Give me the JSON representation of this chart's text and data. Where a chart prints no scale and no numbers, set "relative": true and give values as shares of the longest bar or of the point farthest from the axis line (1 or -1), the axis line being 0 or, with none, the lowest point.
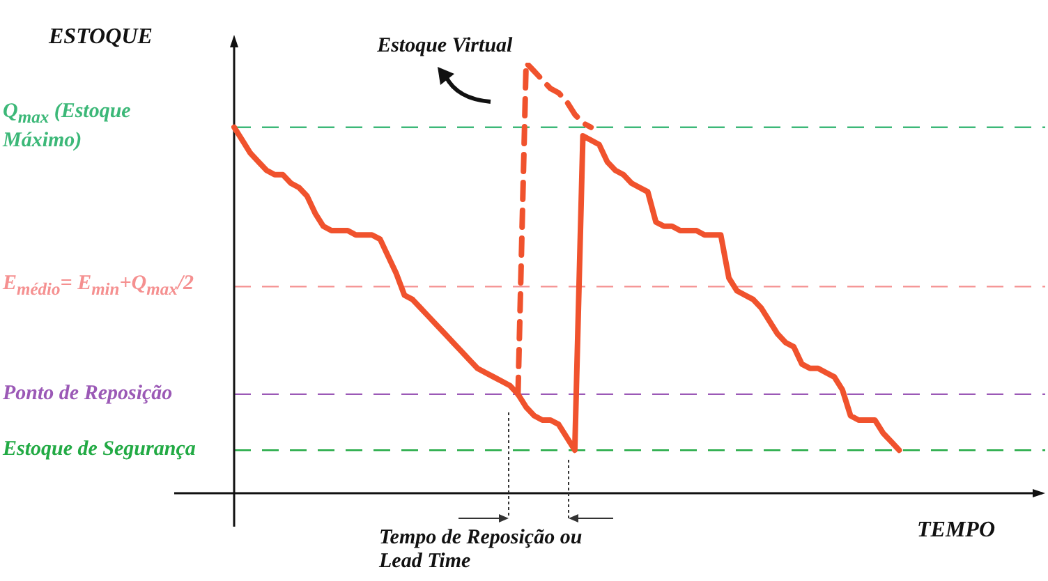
{
  "chart_data": {
    "type": "line",
    "relative": true,
    "ylabel": "ESTOQUE",
    "xlabel": "TEMPO",
    "legend": false,
    "marker": "none",
    "categories": [
      null,
      null,
      null,
      null,
      null,
      null,
      null,
      null,
      null,
      null,
      null,
      null,
      null,
      null,
      null,
      null,
      null,
      null,
      null,
      null,
      null,
      null,
      null,
      null,
      null,
      null,
      null,
      null,
      null,
      null,
      null,
      null,
      null,
      null,
      null,
      null,
      null,
      null,
      null,
      null,
      null,
      null,
      null,
      null,
      null,
      null,
      null,
      null,
      null,
      null,
      null,
      null,
      null,
      null,
      null,
      null,
      null,
      null,
      null,
      null,
      null,
      null,
      null,
      null,
      null,
      null,
      null,
      null,
      null,
      null,
      null,
      null,
      null,
      null,
      null,
      null,
      null,
      null,
      null,
      null,
      null,
      null,
      null,
      null,
      null,
      null,
      null,
      null,
      null,
      null,
      null,
      null,
      null,
      null,
      null,
      null,
      null,
      null,
      null,
      null,
      null
    ],
    "series": [
      {
        "color": "#f0522d",
        "line_style": "solid",
        "values": [
          0.85,
          0.82,
          0.79,
          0.77,
          0.75,
          0.74,
          0.74,
          0.72,
          0.71,
          0.69,
          0.65,
          0.62,
          0.61,
          0.61,
          0.61,
          0.6,
          0.6,
          0.6,
          0.59,
          0.55,
          0.51,
          0.46,
          0.45,
          0.43,
          0.41,
          0.39,
          0.37,
          0.35,
          0.33,
          0.31,
          0.29,
          0.28,
          0.27,
          0.26,
          0.25,
          0.23,
          0.2,
          0.18,
          0.17,
          0.17,
          0.16,
          0.13,
          0.1,
          0.83,
          0.82,
          0.81,
          0.77,
          0.75,
          0.74,
          0.72,
          0.71,
          0.7,
          0.63,
          0.62,
          0.62,
          0.61,
          0.61,
          0.61,
          0.6,
          0.6,
          0.6,
          0.5,
          0.47,
          0.46,
          0.45,
          0.43,
          0.4,
          0.37,
          0.35,
          0.34,
          0.3,
          0.29,
          0.29,
          0.28,
          0.27,
          0.24,
          0.18,
          0.17,
          0.17,
          0.17,
          0.14,
          0.12,
          0.1,
          null,
          null,
          null,
          null,
          null,
          null,
          null,
          null,
          null,
          null,
          null,
          null,
          null,
          null,
          null,
          null,
          null,
          null
        ]
      },
      {
        "name": "Estoque Virtual",
        "color": "#f0522d",
        "line_style": "dashed",
        "values": [
          null,
          null,
          null,
          null,
          null,
          null,
          null,
          null,
          null,
          null,
          null,
          null,
          null,
          null,
          null,
          null,
          null,
          null,
          null,
          null,
          null,
          null,
          null,
          null,
          null,
          null,
          null,
          null,
          null,
          null,
          null,
          null,
          null,
          null,
          null,
          0.23,
          1,
          0.98,
          0.96,
          0.94,
          0.93,
          0.91,
          0.88,
          0.86,
          0.85,
          null,
          null,
          null,
          null,
          null,
          null,
          null,
          null,
          null,
          null,
          null,
          null,
          null,
          null,
          null,
          null,
          null,
          null,
          null,
          null,
          null,
          null,
          null,
          null,
          null,
          null,
          null,
          null,
          null,
          null,
          null,
          null,
          null,
          null,
          null,
          null,
          null,
          null,
          null,
          null,
          null,
          null,
          null,
          null,
          null,
          null,
          null,
          null,
          null,
          null,
          null,
          null,
          null,
          null,
          null,
          null
        ]
      }
    ],
    "ref_lines": [
      {
        "axis": "y",
        "value": 0.85,
        "label": "Q$_{max}$ (Estoque Máximo)",
        "color": "#3cb878",
        "line_style": "dashed"
      },
      {
        "axis": "y",
        "value": 0.48,
        "label": "E$_{médio}$= E$_{min}$+Q$_{max}$/2",
        "color": "#f59090",
        "line_style": "dashed"
      },
      {
        "axis": "y",
        "value": 0.23,
        "label": "Ponto de Reposição",
        "color": "#9b59b6",
        "line_style": "dashed"
      },
      {
        "axis": "y",
        "value": 0.1,
        "label": "Estoque de Segurança",
        "color": "#22aa44",
        "line_style": "dashed"
      }
    ],
    "annotations": [
      "Tempo de Reposição ou Lead Time"
    ]
  }
}
